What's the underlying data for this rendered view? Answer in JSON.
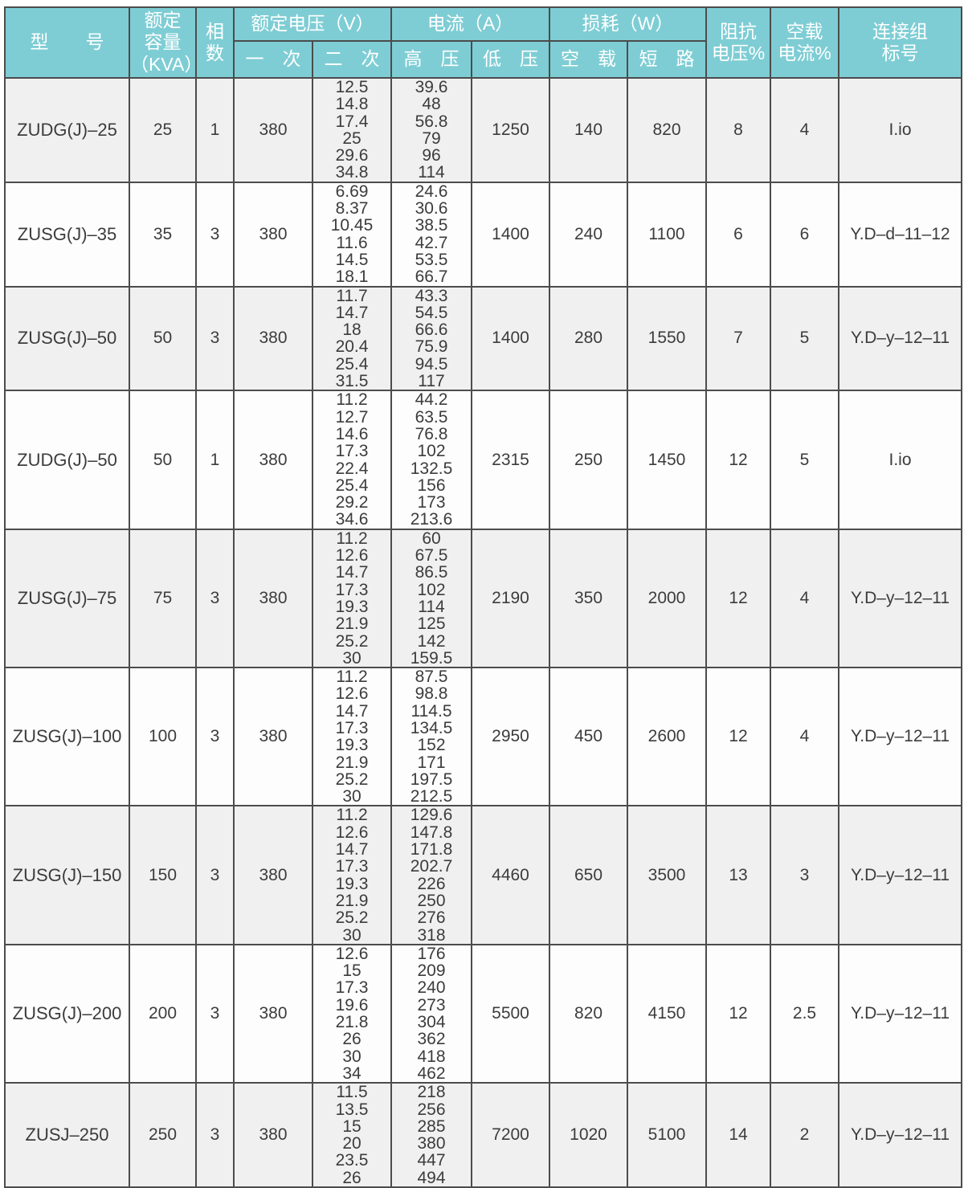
{
  "colors": {
    "header_bg": "#7ecdd4",
    "header_text": "#ffffff",
    "grid_border": "#4c4c4c",
    "row_alt_bg": "#f0f0f0",
    "row_bg": "#fdfdfd",
    "body_text": "#3c3c3c"
  },
  "table": {
    "headers": {
      "model": "型　　号",
      "capacity": "额定\n容量\n（KVA）",
      "phases": "相\n数",
      "rated_voltage_group": "额定电压（V）",
      "primary": "一　次",
      "secondary": "二　次",
      "current_group": "电流（A）",
      "hv": "高　压",
      "lv": "低　压",
      "loss_group": "损耗（W）",
      "no_load": "空　载",
      "short_circuit": "短　路",
      "impedance_voltage": "阻抗\n电压%",
      "no_load_current": "空载\n电流%",
      "connection_group": "连接组\n标号"
    },
    "rows": [
      {
        "model": "ZUDG(J)–25",
        "capacity": "25",
        "phases": "1",
        "primary": "380",
        "secondary": [
          "12.5",
          "14.8",
          "17.4",
          "25",
          "29.6",
          "34.8"
        ],
        "hv_current": [
          "39.6",
          "48",
          "56.8",
          "79",
          "96",
          "114"
        ],
        "lv_current": "1250",
        "no_load_loss": "140",
        "short_circuit_loss": "820",
        "impedance_voltage_pct": "8",
        "no_load_current_pct": "4",
        "connection_group": "I.io"
      },
      {
        "model": "ZUSG(J)–35",
        "capacity": "35",
        "phases": "3",
        "primary": "380",
        "secondary": [
          "6.69",
          "8.37",
          "10.45",
          "11.6",
          "14.5",
          "18.1"
        ],
        "hv_current": [
          "24.6",
          "30.6",
          "38.5",
          "42.7",
          "53.5",
          "66.7"
        ],
        "lv_current": "1400",
        "no_load_loss": "240",
        "short_circuit_loss": "1100",
        "impedance_voltage_pct": "6",
        "no_load_current_pct": "6",
        "connection_group": "Y.D–d–11–12"
      },
      {
        "model": "ZUSG(J)–50",
        "capacity": "50",
        "phases": "3",
        "primary": "380",
        "secondary": [
          "11.7",
          "14.7",
          "18",
          "20.4",
          "25.4",
          "31.5"
        ],
        "hv_current": [
          "43.3",
          "54.5",
          "66.6",
          "75.9",
          "94.5",
          "117"
        ],
        "lv_current": "1400",
        "no_load_loss": "280",
        "short_circuit_loss": "1550",
        "impedance_voltage_pct": "7",
        "no_load_current_pct": "5",
        "connection_group": "Y.D–y–12–11"
      },
      {
        "model": "ZUDG(J)–50",
        "capacity": "50",
        "phases": "1",
        "primary": "380",
        "secondary": [
          "11.2",
          "12.7",
          "14.6",
          "17.3",
          "22.4",
          "25.4",
          "29.2",
          "34.6"
        ],
        "hv_current": [
          "44.2",
          "63.5",
          "76.8",
          "102",
          "132.5",
          "156",
          "173",
          "213.6"
        ],
        "lv_current": "2315",
        "no_load_loss": "250",
        "short_circuit_loss": "1450",
        "impedance_voltage_pct": "12",
        "no_load_current_pct": "5",
        "connection_group": "I.io"
      },
      {
        "model": "ZUSG(J)–75",
        "capacity": "75",
        "phases": "3",
        "primary": "380",
        "secondary": [
          "11.2",
          "12.6",
          "14.7",
          "17.3",
          "19.3",
          "21.9",
          "25.2",
          "30"
        ],
        "hv_current": [
          "60",
          "67.5",
          "86.5",
          "102",
          "114",
          "125",
          "142",
          "159.5"
        ],
        "lv_current": "2190",
        "no_load_loss": "350",
        "short_circuit_loss": "2000",
        "impedance_voltage_pct": "12",
        "no_load_current_pct": "4",
        "connection_group": "Y.D–y–12–11"
      },
      {
        "model": "ZUSG(J)–100",
        "capacity": "100",
        "phases": "3",
        "primary": "380",
        "secondary": [
          "11.2",
          "12.6",
          "14.7",
          "17.3",
          "19.3",
          "21.9",
          "25.2",
          "30"
        ],
        "hv_current": [
          "87.5",
          "98.8",
          "114.5",
          "134.5",
          "152",
          "171",
          "197.5",
          "212.5"
        ],
        "lv_current": "2950",
        "no_load_loss": "450",
        "short_circuit_loss": "2600",
        "impedance_voltage_pct": "12",
        "no_load_current_pct": "4",
        "connection_group": "Y.D–y–12–11"
      },
      {
        "model": "ZUSG(J)–150",
        "capacity": "150",
        "phases": "3",
        "primary": "380",
        "secondary": [
          "11.2",
          "12.6",
          "14.7",
          "17.3",
          "19.3",
          "21.9",
          "25.2",
          "30"
        ],
        "hv_current": [
          "129.6",
          "147.8",
          "171.8",
          "202.7",
          "226",
          "250",
          "276",
          "318"
        ],
        "lv_current": "4460",
        "no_load_loss": "650",
        "short_circuit_loss": "3500",
        "impedance_voltage_pct": "13",
        "no_load_current_pct": "3",
        "connection_group": "Y.D–y–12–11"
      },
      {
        "model": "ZUSG(J)–200",
        "capacity": "200",
        "phases": "3",
        "primary": "380",
        "secondary": [
          "12.6",
          "15",
          "17.3",
          "19.6",
          "21.8",
          "26",
          "30",
          "34"
        ],
        "hv_current": [
          "176",
          "209",
          "240",
          "273",
          "304",
          "362",
          "418",
          "462"
        ],
        "lv_current": "5500",
        "no_load_loss": "820",
        "short_circuit_loss": "4150",
        "impedance_voltage_pct": "12",
        "no_load_current_pct": "2.5",
        "connection_group": "Y.D–y–12–11"
      },
      {
        "model": "ZUSJ–250",
        "capacity": "250",
        "phases": "3",
        "primary": "380",
        "secondary": [
          "11.5",
          "13.5",
          "15",
          "20",
          "23.5",
          "26"
        ],
        "hv_current": [
          "218",
          "256",
          "285",
          "380",
          "447",
          "494"
        ],
        "lv_current": "7200",
        "no_load_loss": "1020",
        "short_circuit_loss": "5100",
        "impedance_voltage_pct": "14",
        "no_load_current_pct": "2",
        "connection_group": "Y.D–y–12–11"
      }
    ]
  }
}
